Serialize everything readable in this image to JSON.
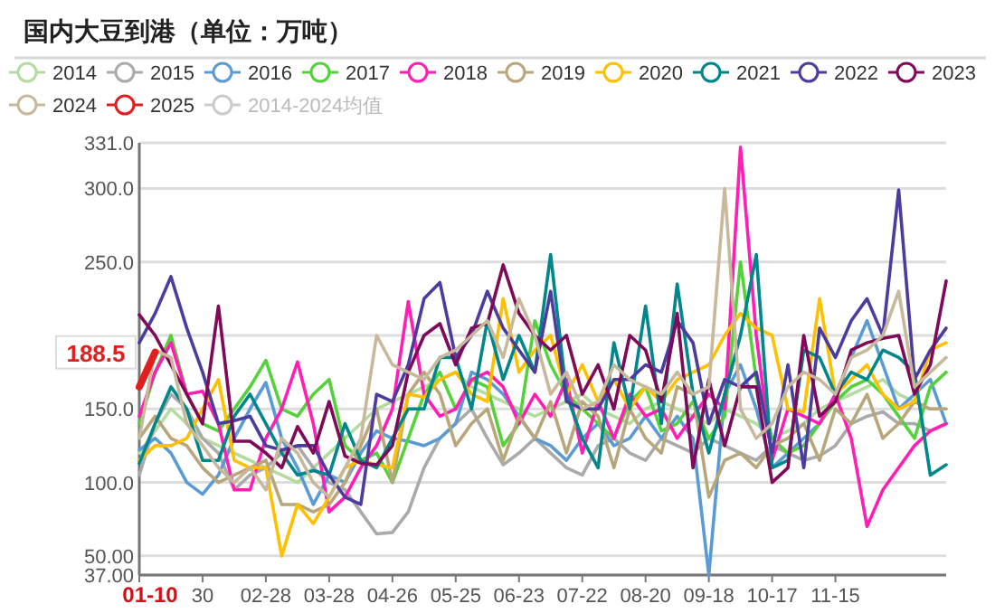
{
  "chart_data": {
    "type": "line",
    "title": "国内大豆到港（单位：万吨）",
    "categories": [
      "01-10",
      null,
      null,
      null,
      "30",
      null,
      null,
      null,
      "02-28",
      null,
      null,
      null,
      "03-28",
      null,
      null,
      null,
      "04-26",
      null,
      null,
      null,
      "05-25",
      null,
      null,
      null,
      "06-23",
      null,
      null,
      null,
      "07-22",
      null,
      null,
      null,
      "08-20",
      null,
      null,
      null,
      "09-18",
      null,
      null,
      null,
      "10-17",
      null,
      null,
      null,
      "11-15",
      null,
      null,
      null,
      null,
      null,
      null,
      null
    ],
    "ylim": [
      37,
      331
    ],
    "yticks": [
      {
        "value": 37,
        "label": "37.00"
      },
      {
        "value": 50,
        "label": "50.00"
      },
      {
        "value": 100,
        "label": "100.0"
      },
      {
        "value": 150,
        "label": "150.0"
      },
      {
        "value": 200,
        "label": null
      },
      {
        "value": 250,
        "label": "250.0"
      },
      {
        "value": 300,
        "label": "300.0"
      },
      {
        "value": 331,
        "label": "331.0"
      }
    ],
    "grid": "y",
    "legend": "top",
    "series": [
      {
        "name": "2014",
        "color": "#b5dca0",
        "values": [
          120,
          135,
          150,
          140,
          130,
          125,
          120,
          115,
          110,
          105,
          100,
          110,
          120,
          130,
          140,
          150,
          155,
          160,
          165,
          170,
          175,
          165,
          160,
          155,
          150,
          145,
          150,
          155,
          160,
          150,
          145,
          140,
          150,
          155,
          150,
          145,
          140,
          150,
          145,
          140,
          130,
          135,
          140,
          150,
          155,
          160,
          165,
          170,
          160,
          155,
          150,
          150
        ]
      },
      {
        "name": "2015",
        "color": "#aaaaaa",
        "values": [
          105,
          140,
          160,
          150,
          130,
          120,
          95,
          105,
          110,
          120,
          125,
          110,
          100,
          95,
          80,
          65,
          66,
          80,
          110,
          130,
          140,
          150,
          130,
          112,
          120,
          130,
          120,
          110,
          105,
          125,
          130,
          120,
          115,
          130,
          125,
          120,
          130,
          125,
          120,
          115,
          125,
          120,
          115,
          118,
          125,
          140,
          145,
          148,
          140,
          140,
          135,
          140
        ]
      },
      {
        "name": "2016",
        "color": "#5b9bd5",
        "values": [
          122,
          130,
          120,
          100,
          92,
          105,
          130,
          150,
          168,
          130,
          110,
          85,
          105,
          100,
          120,
          135,
          130,
          128,
          125,
          130,
          140,
          175,
          170,
          160,
          145,
          130,
          125,
          115,
          130,
          140,
          125,
          130,
          145,
          130,
          145,
          130,
          37,
          160,
          180,
          150,
          110,
          120,
          130,
          140,
          160,
          185,
          210,
          180,
          150,
          160,
          170,
          140
        ]
      },
      {
        "name": "2017",
        "color": "#55d13c",
        "values": [
          140,
          175,
          200,
          160,
          140,
          135,
          150,
          165,
          183,
          150,
          145,
          160,
          170,
          125,
          115,
          120,
          100,
          130,
          160,
          175,
          150,
          170,
          165,
          125,
          140,
          210,
          180,
          160,
          150,
          140,
          130,
          155,
          165,
          135,
          140,
          155,
          130,
          145,
          250,
          170,
          130,
          120,
          125,
          140,
          155,
          165,
          170,
          160,
          145,
          130,
          165,
          175
        ]
      },
      {
        "name": "2018",
        "color": "#ff1fb4",
        "values": [
          145,
          175,
          195,
          160,
          162,
          140,
          95,
          95,
          130,
          150,
          182,
          140,
          80,
          90,
          110,
          125,
          150,
          223,
          160,
          145,
          150,
          170,
          175,
          165,
          140,
          160,
          145,
          170,
          120,
          155,
          130,
          160,
          145,
          150,
          130,
          145,
          160,
          150,
          328,
          200,
          115,
          150,
          145,
          140,
          160,
          130,
          70,
          95,
          110,
          125,
          135,
          140
        ]
      },
      {
        "name": "2019",
        "color": "#b8a77a",
        "values": [
          130,
          145,
          130,
          125,
          110,
          100,
          105,
          110,
          115,
          85,
          85,
          80,
          85,
          100,
          125,
          150,
          100,
          160,
          175,
          160,
          125,
          140,
          150,
          115,
          145,
          130,
          155,
          120,
          155,
          145,
          110,
          150,
          130,
          120,
          165,
          160,
          90,
          115,
          120,
          110,
          125,
          130,
          140,
          115,
          150,
          140,
          160,
          130,
          140,
          155,
          150,
          150
        ]
      },
      {
        "name": "2020",
        "color": "#ffc000",
        "values": [
          115,
          125,
          125,
          130,
          150,
          170,
          115,
          110,
          110,
          50,
          85,
          72,
          90,
          110,
          115,
          112,
          110,
          160,
          158,
          170,
          175,
          160,
          155,
          225,
          175,
          190,
          200,
          160,
          180,
          155,
          170,
          150,
          165,
          155,
          170,
          175,
          180,
          200,
          215,
          205,
          200,
          150,
          148,
          225,
          160,
          170,
          180,
          160,
          150,
          155,
          190,
          195
        ]
      },
      {
        "name": "2021",
        "color": "#00868b",
        "values": [
          113,
          140,
          165,
          150,
          115,
          115,
          145,
          160,
          140,
          120,
          105,
          108,
          105,
          140,
          115,
          110,
          130,
          150,
          150,
          185,
          185,
          150,
          210,
          170,
          200,
          175,
          255,
          160,
          130,
          110,
          195,
          150,
          220,
          140,
          235,
          160,
          120,
          160,
          200,
          255,
          110,
          115,
          190,
          185,
          160,
          175,
          170,
          190,
          185,
          175,
          105,
          112
        ]
      },
      {
        "name": "2022",
        "color": "#4b3c9e",
        "values": [
          195,
          215,
          240,
          205,
          175,
          140,
          142,
          145,
          125,
          122,
          125,
          125,
          105,
          90,
          85,
          160,
          155,
          180,
          225,
          236,
          185,
          200,
          230,
          205,
          190,
          175,
          230,
          155,
          150,
          150,
          170,
          170,
          180,
          175,
          210,
          195,
          140,
          170,
          165,
          175,
          120,
          180,
          110,
          205,
          185,
          210,
          225,
          200,
          299,
          170,
          190,
          205
        ]
      },
      {
        "name": "2023",
        "color": "#7f0a5a",
        "values": [
          214,
          200,
          180,
          160,
          140,
          220,
          128,
          128,
          120,
          110,
          138,
          120,
          155,
          118,
          113,
          112,
          125,
          175,
          200,
          208,
          180,
          205,
          208,
          248,
          215,
          200,
          190,
          200,
          160,
          180,
          150,
          200,
          190,
          155,
          215,
          110,
          170,
          125,
          165,
          165,
          100,
          110,
          200,
          145,
          155,
          190,
          195,
          198,
          200,
          160,
          180,
          237
        ]
      },
      {
        "name": "2024",
        "color": "#c8b89c",
        "values": [
          130,
          190,
          185,
          140,
          125,
          110,
          100,
          110,
          95,
          130,
          120,
          100,
          90,
          110,
          130,
          200,
          180,
          175,
          170,
          185,
          190,
          200,
          210,
          185,
          225,
          200,
          160,
          175,
          150,
          155,
          180,
          170,
          165,
          160,
          175,
          160,
          165,
          300,
          150,
          130,
          140,
          165,
          175,
          170,
          160,
          185,
          190,
          200,
          230,
          165,
          175,
          185
        ]
      },
      {
        "name": "2025",
        "color": "#e02020",
        "values": [
          165,
          188.5,
          null,
          null,
          null,
          null,
          null,
          null,
          null,
          null,
          null,
          null,
          null,
          null,
          null,
          null,
          null,
          null,
          null,
          null,
          null,
          null,
          null,
          null,
          null,
          null,
          null,
          null,
          null,
          null,
          null,
          null,
          null,
          null,
          null,
          null,
          null,
          null,
          null,
          null,
          null,
          null,
          null,
          null,
          null,
          null,
          null,
          null,
          null,
          null,
          null,
          null
        ],
        "value_labels": [
          null,
          "188.5",
          null,
          null,
          null,
          null,
          null,
          null,
          null,
          null,
          null,
          null,
          null,
          null,
          null,
          null,
          null,
          null,
          null,
          null,
          null,
          null,
          null,
          null,
          null,
          null,
          null,
          null,
          null,
          null,
          null,
          null,
          null,
          null,
          null,
          null,
          null,
          null,
          null,
          null,
          null,
          null,
          null,
          null,
          null,
          null,
          null,
          null,
          null,
          null,
          null,
          null
        ]
      },
      {
        "name": "2014-2024均值",
        "color": "#cccccc",
        "values": [
          null,
          null,
          null,
          null,
          null,
          null,
          null,
          null,
          null,
          null,
          null,
          null,
          null,
          null,
          null,
          null,
          null,
          null,
          null,
          null,
          null,
          null,
          null,
          null,
          null,
          null,
          null,
          null,
          null,
          null,
          null,
          null,
          null,
          null,
          null,
          null,
          null,
          null,
          null,
          null,
          null,
          null,
          null,
          null,
          null,
          null,
          null,
          null,
          null,
          null,
          null,
          null
        ]
      }
    ]
  }
}
